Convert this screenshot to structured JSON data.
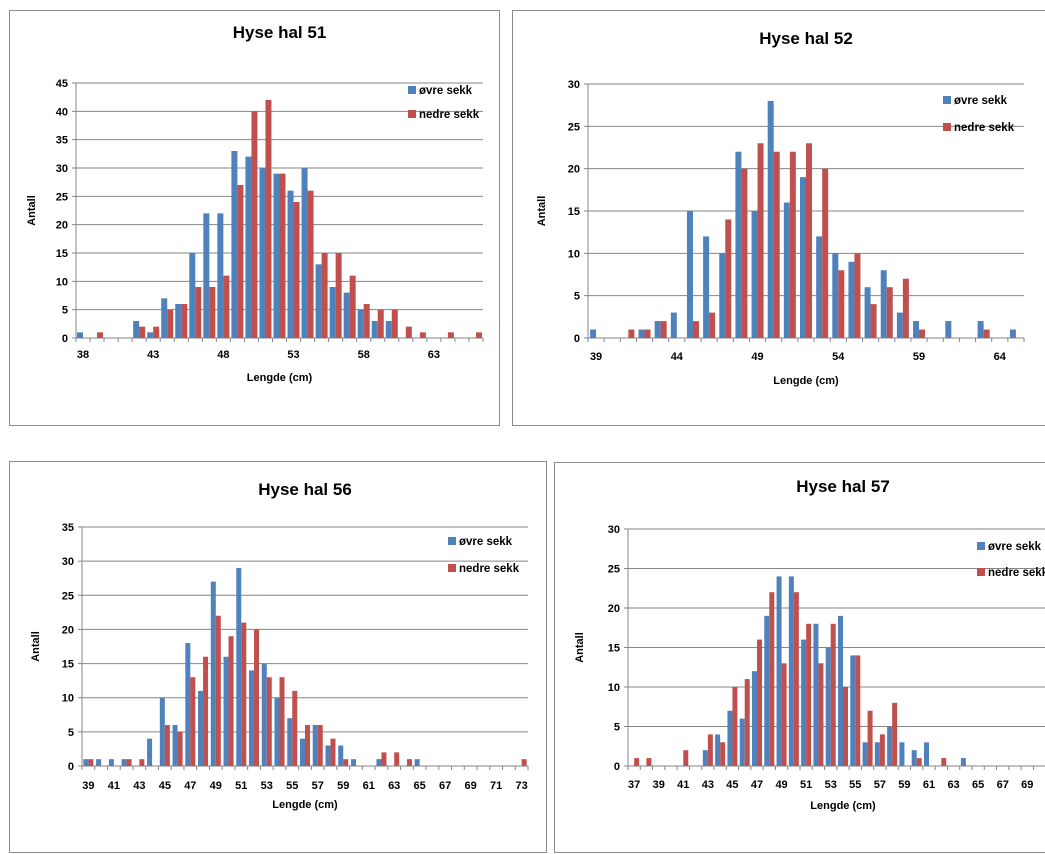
{
  "colors": {
    "ovre": "#4f81bd",
    "nedre": "#c0504d",
    "grid": "#868686",
    "axis": "#868686"
  },
  "chart_data": [
    {
      "type": "bar",
      "title": "Hyse hal 51",
      "xlabel": "Lengde (cm)",
      "ylabel": "Antall",
      "xlim": [
        38,
        66
      ],
      "xticks": [
        38,
        43,
        48,
        53,
        58,
        63
      ],
      "ylim": [
        0,
        45
      ],
      "yticks": [
        0,
        5,
        10,
        15,
        20,
        25,
        30,
        35,
        40,
        45
      ],
      "grid": true,
      "legend": "top-right",
      "series": [
        {
          "name": "øvre sekk",
          "color": "#4f81bd",
          "x": [
            38,
            42,
            43,
            44,
            45,
            46,
            47,
            48,
            49,
            50,
            51,
            52,
            53,
            54,
            55,
            56,
            57,
            58,
            59,
            60
          ],
          "y": [
            1,
            3,
            1,
            7,
            6,
            15,
            22,
            22,
            33,
            32,
            30,
            29,
            26,
            30,
            13,
            9,
            8,
            5,
            3,
            3
          ]
        },
        {
          "name": "nedre sekk",
          "color": "#c0504d",
          "x": [
            39,
            42,
            43,
            44,
            45,
            46,
            47,
            48,
            49,
            50,
            51,
            52,
            53,
            54,
            55,
            56,
            57,
            58,
            59,
            60,
            61,
            62,
            64,
            66
          ],
          "y": [
            1,
            2,
            2,
            5,
            6,
            9,
            9,
            11,
            27,
            40,
            42,
            29,
            24,
            26,
            15,
            15,
            11,
            6,
            5,
            5,
            2,
            1,
            1,
            1
          ]
        }
      ]
    },
    {
      "type": "bar",
      "title": "Hyse hal 52",
      "xlabel": "Lengde (cm)",
      "ylabel": "Antall",
      "xlim": [
        39,
        65
      ],
      "xticks": [
        39,
        44,
        49,
        54,
        59,
        64
      ],
      "ylim": [
        0,
        30
      ],
      "yticks": [
        0,
        5,
        10,
        15,
        20,
        25,
        30
      ],
      "grid": true,
      "legend": "top-right",
      "series": [
        {
          "name": "øvre sekk",
          "color": "#4f81bd",
          "x": [
            39,
            42,
            43,
            44,
            45,
            46,
            47,
            48,
            49,
            50,
            51,
            52,
            53,
            54,
            55,
            56,
            57,
            58,
            59,
            61,
            63,
            65
          ],
          "y": [
            1,
            1,
            2,
            3,
            15,
            12,
            10,
            22,
            15,
            28,
            16,
            19,
            12,
            10,
            9,
            6,
            8,
            3,
            2,
            2,
            2,
            1
          ]
        },
        {
          "name": "nedre sekk",
          "color": "#c0504d",
          "x": [
            41,
            42,
            43,
            45,
            46,
            47,
            48,
            49,
            50,
            51,
            52,
            53,
            54,
            55,
            56,
            57,
            58,
            59,
            63
          ],
          "y": [
            1,
            1,
            2,
            2,
            3,
            14,
            20,
            23,
            22,
            22,
            23,
            20,
            8,
            10,
            4,
            6,
            7,
            1,
            1
          ]
        }
      ]
    },
    {
      "type": "bar",
      "title": "Hyse hal 56",
      "xlabel": "Lengde (cm)",
      "ylabel": "Antall",
      "xlim": [
        39,
        73
      ],
      "xticks": [
        39,
        41,
        43,
        45,
        47,
        49,
        51,
        53,
        55,
        57,
        59,
        61,
        63,
        65,
        67,
        69,
        71,
        73
      ],
      "ylim": [
        0,
        35
      ],
      "yticks": [
        0,
        5,
        10,
        15,
        20,
        25,
        30,
        35
      ],
      "grid": true,
      "legend": "top-right",
      "series": [
        {
          "name": "øvre sekk",
          "color": "#4f81bd",
          "x": [
            39,
            40,
            41,
            42,
            44,
            45,
            46,
            47,
            48,
            49,
            50,
            51,
            52,
            53,
            54,
            55,
            56,
            57,
            58,
            59,
            60,
            62,
            65
          ],
          "y": [
            1,
            1,
            1,
            1,
            4,
            10,
            6,
            18,
            11,
            27,
            16,
            29,
            14,
            15,
            10,
            7,
            4,
            6,
            3,
            3,
            1,
            1,
            1
          ]
        },
        {
          "name": "nedre sekk",
          "color": "#c0504d",
          "x": [
            39,
            42,
            43,
            45,
            46,
            47,
            48,
            49,
            50,
            51,
            52,
            53,
            54,
            55,
            56,
            57,
            58,
            59,
            62,
            63,
            64,
            73
          ],
          "y": [
            1,
            1,
            1,
            6,
            5,
            13,
            16,
            22,
            19,
            21,
            20,
            13,
            13,
            11,
            6,
            6,
            4,
            1,
            2,
            2,
            1,
            1
          ]
        }
      ]
    },
    {
      "type": "bar",
      "title": "Hyse hal 57",
      "xlabel": "Lengde (cm)",
      "ylabel": "Antall",
      "xlim": [
        37,
        71
      ],
      "xticks": [
        37,
        39,
        41,
        43,
        45,
        47,
        49,
        51,
        53,
        55,
        57,
        59,
        61,
        63,
        65,
        67,
        69
      ],
      "ylim": [
        0,
        30
      ],
      "yticks": [
        0,
        5,
        10,
        15,
        20,
        25,
        30
      ],
      "grid": true,
      "legend": "top-right",
      "series": [
        {
          "name": "øvre sekk",
          "color": "#4f81bd",
          "x": [
            43,
            44,
            45,
            46,
            47,
            48,
            49,
            50,
            51,
            52,
            53,
            54,
            55,
            56,
            57,
            58,
            59,
            60,
            61,
            64
          ],
          "y": [
            2,
            4,
            7,
            6,
            12,
            19,
            24,
            24,
            16,
            18,
            15,
            19,
            14,
            3,
            3,
            5,
            3,
            2,
            3,
            1
          ]
        },
        {
          "name": "nedre sekk",
          "color": "#c0504d",
          "x": [
            37,
            38,
            41,
            43,
            44,
            45,
            46,
            47,
            48,
            49,
            50,
            51,
            52,
            53,
            54,
            55,
            56,
            57,
            58,
            60,
            62
          ],
          "y": [
            1,
            1,
            2,
            4,
            3,
            10,
            11,
            16,
            22,
            13,
            22,
            18,
            13,
            18,
            10,
            14,
            7,
            4,
            8,
            1,
            1
          ]
        }
      ]
    }
  ]
}
